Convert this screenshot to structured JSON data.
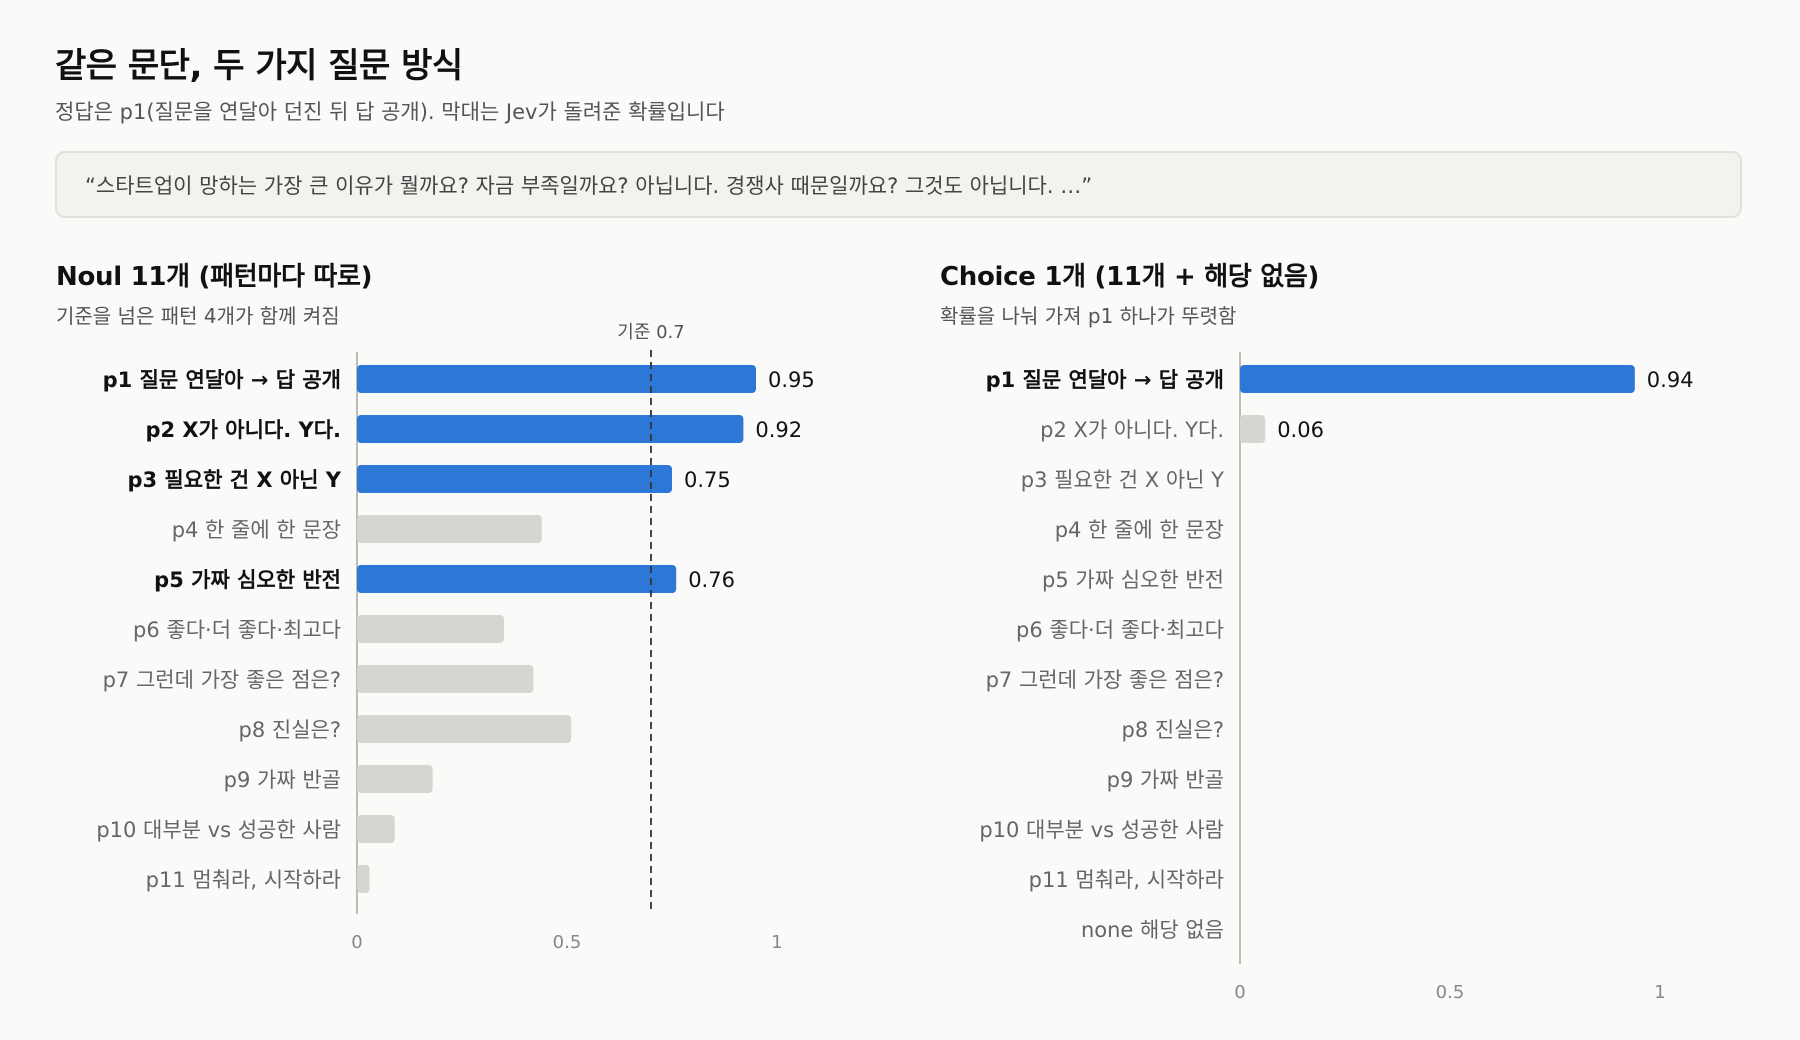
{
  "title": "같은 문단, 두 가지 질문 방식",
  "subtitle": "정답은 p1(질문을 연달아 던진 뒤 답 공개). 막대는 Jev가 돌려준 확률입니다",
  "quote": "“스타트업이 망하는 가장 큰 이유가 뭘까요? 자금 부족일까요? 아닙니다. 경쟁사 때문일까요? 그것도 아닙니다. …”",
  "colors": {
    "highlight": "#2d77d6",
    "muted": "#d6d5d0",
    "axis": "#bdbbb6",
    "threshold_line": "#333333"
  },
  "chart_data": [
    {
      "type": "bar",
      "orientation": "horizontal",
      "title": "Noul 11개 (패턴마다 따로)",
      "subtitle": "기준을 넘은 패턴 4개가 함께 켜짐",
      "categories": [
        "p1 질문 연달아 → 답 공개",
        "p2 X가 아니다. Y다.",
        "p3 필요한 건 X 아닌 Y",
        "p4 한 줄에 한 문장",
        "p5 가짜 심오한 반전",
        "p6 좋다·더 좋다·최고다",
        "p7 그런데 가장 좋은 점은?",
        "p8 진실은?",
        "p9 가짜 반골",
        "p10 대부분 vs 성공한 사람",
        "p11 멈춰라, 시작하라"
      ],
      "values": [
        0.95,
        0.92,
        0.75,
        0.44,
        0.76,
        0.35,
        0.42,
        0.51,
        0.18,
        0.09,
        0.03
      ],
      "value_labels": [
        "0.95",
        "0.92",
        "0.75",
        "",
        "0.76",
        "",
        "",
        "",
        "",
        "",
        ""
      ],
      "highlighted": [
        true,
        true,
        true,
        false,
        true,
        false,
        false,
        false,
        false,
        false,
        false
      ],
      "threshold": 0.7,
      "threshold_label": "기준 0.7",
      "xlim": [
        0,
        1
      ],
      "xticks": [
        "0",
        "0.5",
        "1"
      ]
    },
    {
      "type": "bar",
      "orientation": "horizontal",
      "title": "Choice 1개 (11개 + 해당 없음)",
      "subtitle": "확률을 나눠 가져 p1 하나가 뚜렷함",
      "categories": [
        "p1 질문 연달아 → 답 공개",
        "p2 X가 아니다. Y다.",
        "p3 필요한 건 X 아닌 Y",
        "p4 한 줄에 한 문장",
        "p5 가짜 심오한 반전",
        "p6 좋다·더 좋다·최고다",
        "p7 그런데 가장 좋은 점은?",
        "p8 진실은?",
        "p9 가짜 반골",
        "p10 대부분 vs 성공한 사람",
        "p11 멈춰라, 시작하라",
        "none 해당 없음"
      ],
      "values": [
        0.94,
        0.06,
        0,
        0,
        0,
        0,
        0,
        0,
        0,
        0,
        0,
        0
      ],
      "value_labels": [
        "0.94",
        "0.06",
        "",
        "",
        "",
        "",
        "",
        "",
        "",
        "",
        "",
        ""
      ],
      "highlighted": [
        true,
        false,
        false,
        false,
        false,
        false,
        false,
        false,
        false,
        false,
        false,
        false
      ],
      "xlim": [
        0,
        1
      ],
      "xticks": [
        "0",
        "0.5",
        "1"
      ]
    }
  ]
}
